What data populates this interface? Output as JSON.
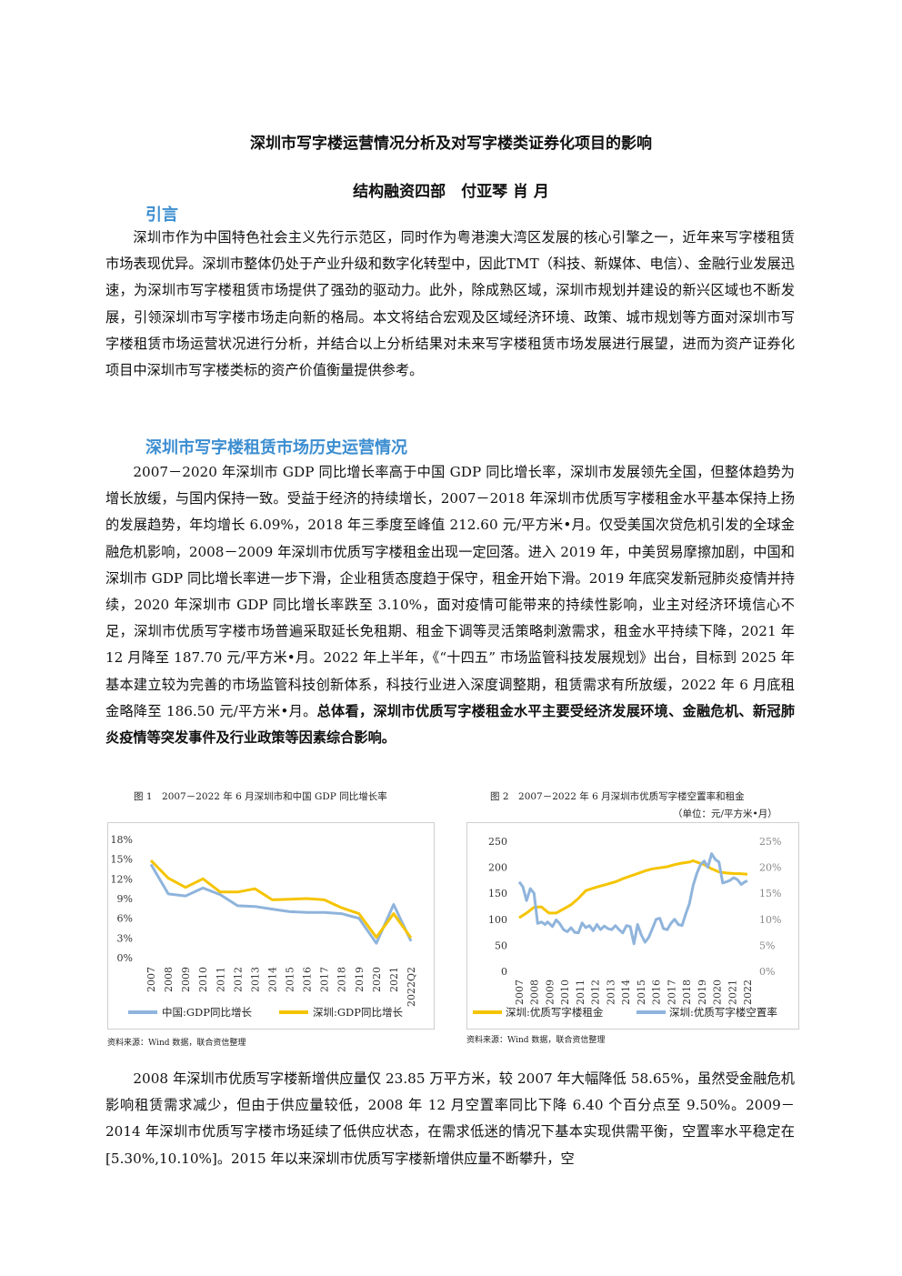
{
  "title": "深圳市写字楼运营情况分析及对写字楼类证券化项目的影响",
  "authors": "结构融资四部　付亚琴  肖  月",
  "section1": {
    "heading": "引言",
    "paragraph": "深圳市作为中国特色社会主义先行示范区，同时作为粤港澳大湾区发展的核心引擎之一，近年来写字楼租赁市场表现优异。深圳市整体仍处于产业升级和数字化转型中，因此TMT（科技、新媒体、电信）、金融行业发展迅速，为深圳市写字楼租赁市场提供了强劲的驱动力。此外，除成熟区域，深圳市规划并建设的新兴区域也不断发展，引领深圳市写字楼市场走向新的格局。本文将结合宏观及区域经济环境、政策、城市规划等方面对深圳市写字楼租赁市场运营状况进行分析，并结合以上分析结果对未来写字楼租赁市场发展进行展望，进而为资产证券化项目中深圳市写字楼类标的资产价值衡量提供参考。"
  },
  "section2": {
    "heading": "深圳市写字楼租赁市场历史运营情况",
    "paragraph_plain": "2007－2020 年深圳市 GDP 同比增长率高于中国 GDP 同比增长率，深圳市发展领先全国，但整体趋势为增长放缓，与国内保持一致。受益于经济的持续增长，2007－2018 年深圳市优质写字楼租金水平基本保持上扬的发展趋势，年均增长 6.09%，2018 年三季度至峰值 212.60 元/平方米•月。仅受美国次贷危机引发的全球金融危机影响，2008－2009 年深圳市优质写字楼租金出现一定回落。进入 2019 年，中美贸易摩擦加剧，中国和深圳市 GDP 同比增长率进一步下滑，企业租赁态度趋于保守，租金开始下滑。2019 年底突发新冠肺炎疫情并持续，2020 年深圳市 GDP 同比增长率跌至 3.10%，面对疫情可能带来的持续性影响，业主对经济环境信心不足，深圳市优质写字楼市场普遍采取延长免租期、租金下调等灵活策略刺激需求，租金水平持续下降，2021 年 12 月降至 187.70 元/平方米•月。2022 年上半年，《“十四五” 市场监管科技发展规划》出台，目标到 2025 年基本建立较为完善的市场监管科技创新体系，科技行业进入深度调整期，租赁需求有所放缓，2022 年 6 月底租金略降至 186.50 元/平方米•月。",
    "paragraph_bold": "总体看，深圳市优质写字楼租金水平主要受经济发展环境、金融危机、新冠肺炎疫情等突发事件及行业政策等因素综合影响。"
  },
  "figure1": {
    "caption": "图 1　2007－2022 年 6 月深圳市和中国 GDP 同比增长率",
    "source": "资料来源：Wind 数据，联合资信整理"
  },
  "figure2": {
    "caption": "图 2　2007－2022 年 6 月深圳市优质写字楼空置率和租金",
    "unit": "（单位：元/平方米•月）",
    "source": "资料来源：Wind 数据，联合资信整理"
  },
  "section3": {
    "paragraph": "2008 年深圳市优质写字楼新增供应量仅 23.85 万平方米，较 2007 年大幅降低 58.65%，虽然受金融危机影响租赁需求减少，但由于供应量较低，2008 年 12 月空置率同比下降 6.40 个百分点至 9.50%。2009－2014 年深圳市优质写字楼市场延续了低供应状态，在需求低迷的情况下基本实现供需平衡，空置率水平稳定在[5.30%,10.10%]。2015 年以来深圳市优质写字楼新增供应量不断攀升，空"
  },
  "chart_data": [
    {
      "type": "line",
      "categories": [
        "2007",
        "2008",
        "2009",
        "2010",
        "2011",
        "2012",
        "2013",
        "2014",
        "2015",
        "2016",
        "2017",
        "2018",
        "2019",
        "2020",
        "2021",
        "2022Q2"
      ],
      "y_ticks": [
        "0%",
        "3%",
        "6%",
        "9%",
        "12%",
        "15%",
        "18%"
      ],
      "ylim": [
        0,
        18
      ],
      "grid": false,
      "legend": "bottom",
      "series": [
        {
          "name": "中国:GDP同比增长",
          "color": "#8fb4dc",
          "values": [
            14.2,
            9.7,
            9.4,
            10.6,
            9.6,
            7.9,
            7.8,
            7.4,
            7.0,
            6.9,
            6.9,
            6.7,
            6.0,
            2.2,
            8.1,
            2.5
          ]
        },
        {
          "name": "深圳:GDP同比增长",
          "color": "#f5c400",
          "values": [
            14.8,
            12.1,
            10.7,
            12.0,
            10.0,
            10.0,
            10.5,
            8.8,
            8.9,
            9.0,
            8.8,
            7.6,
            6.7,
            3.1,
            6.7,
            3.0
          ]
        }
      ]
    },
    {
      "type": "line",
      "categories": [
        "2007",
        "2008",
        "2009",
        "2010",
        "2011",
        "2012",
        "2013",
        "2014",
        "2015",
        "2016",
        "2017",
        "2018",
        "2019",
        "2020",
        "2021",
        "2022"
      ],
      "y_left_ticks": [
        "0",
        "50",
        "100",
        "150",
        "200",
        "250"
      ],
      "y_right_ticks": [
        "0%",
        "5%",
        "10%",
        "15%",
        "20%",
        "25%"
      ],
      "ylim_left": [
        0,
        250
      ],
      "ylim_right": [
        0,
        25
      ],
      "grid": false,
      "legend": "bottom",
      "series": [
        {
          "name": "深圳:优质写字楼租金",
          "axis": "left",
          "color": "#f5c400",
          "x": [
            2007.0,
            2007.5,
            2008.0,
            2008.5,
            2009.0,
            2009.5,
            2010.0,
            2010.5,
            2011.0,
            2011.5,
            2012.0,
            2012.5,
            2013.0,
            2013.5,
            2014.0,
            2014.5,
            2015.0,
            2015.5,
            2016.0,
            2016.5,
            2017.0,
            2017.5,
            2018.0,
            2018.5,
            2018.75,
            2019.0,
            2019.5,
            2020.0,
            2020.5,
            2021.0,
            2021.5,
            2021.92,
            2022.42
          ],
          "values": [
            103,
            112,
            123,
            124,
            112,
            112,
            120,
            128,
            140,
            155,
            160,
            164,
            168,
            172,
            178,
            183,
            188,
            193,
            197,
            199,
            201,
            205,
            208,
            210,
            212.6,
            210,
            205,
            197,
            191,
            189,
            188,
            187.7,
            186.5
          ]
        },
        {
          "name": "深圳:优质写字楼空置率",
          "axis": "right",
          "color": "#8fb4dc",
          "x": [
            2007.0,
            2007.25,
            2007.5,
            2007.75,
            2008.0,
            2008.25,
            2008.5,
            2008.75,
            2008.92,
            2009.25,
            2009.5,
            2009.75,
            2010.0,
            2010.25,
            2010.5,
            2010.75,
            2011.0,
            2011.25,
            2011.5,
            2011.75,
            2012.0,
            2012.25,
            2012.5,
            2012.75,
            2013.0,
            2013.25,
            2013.5,
            2013.75,
            2014.0,
            2014.25,
            2014.5,
            2014.75,
            2015.0,
            2015.25,
            2015.5,
            2015.75,
            2016.0,
            2016.25,
            2016.5,
            2016.75,
            2017.0,
            2017.25,
            2017.5,
            2017.75,
            2018.0,
            2018.25,
            2018.5,
            2018.75,
            2019.0,
            2019.25,
            2019.5,
            2019.75,
            2020.0,
            2020.25,
            2020.5,
            2020.75,
            2021.0,
            2021.25,
            2021.5,
            2021.75,
            2022.0,
            2022.25,
            2022.42
          ],
          "values": [
            17.2,
            16.2,
            13.6,
            15.9,
            15.0,
            9.2,
            9.5,
            9.0,
            9.5,
            8.6,
            9.9,
            9.1,
            8.0,
            7.6,
            8.4,
            7.5,
            7.4,
            9.3,
            8.4,
            8.8,
            7.8,
            9.0,
            8.0,
            8.7,
            8.2,
            8.0,
            8.8,
            8.0,
            7.4,
            8.8,
            8.6,
            5.3,
            9.0,
            7.0,
            5.6,
            6.5,
            8.2,
            10.0,
            10.2,
            8.2,
            8.0,
            9.2,
            10.0,
            9.0,
            8.8,
            11.0,
            13.0,
            16.5,
            18.8,
            20.5,
            21.2,
            20.0,
            22.6,
            21.5,
            21.0,
            17.0,
            17.2,
            17.5,
            18.0,
            17.6,
            16.7,
            17.2,
            17.4
          ]
        }
      ]
    }
  ]
}
